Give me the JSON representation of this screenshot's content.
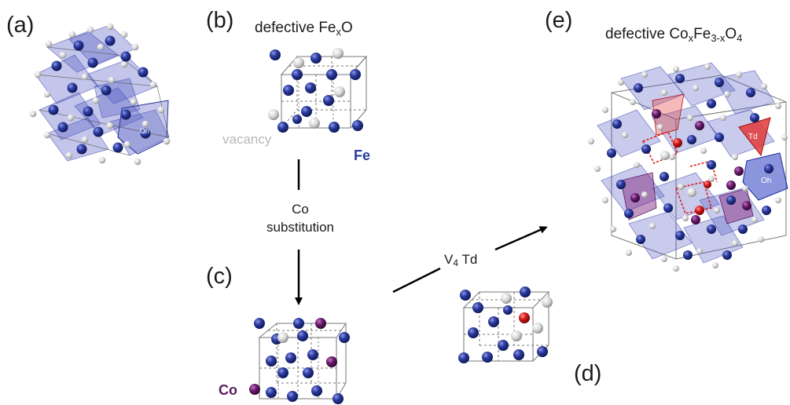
{
  "panels": {
    "a": {
      "label": "(a)",
      "site_label": "Oh"
    },
    "b": {
      "label": "(b)",
      "title_main": "defective Fe",
      "title_sub": "x",
      "title_tail": "O",
      "vacancy_label": "vacancy",
      "fe_label": "Fe"
    },
    "c": {
      "label": "(c)",
      "co_label": "Co"
    },
    "d": {
      "label": "(d)"
    },
    "e": {
      "label": "(e)",
      "title_main": "defective Co",
      "title_sub1": "x",
      "title_mid": "Fe",
      "title_sub2": "3-x",
      "title_tail": "O",
      "title_sub3": "4",
      "td_label": "Td",
      "oh_label": "Oh"
    }
  },
  "arrows": {
    "down": {
      "line1": "Co",
      "line2": "substitution"
    },
    "diag": {
      "main": "V",
      "sub": "4",
      "tail": " Td"
    }
  },
  "colors": {
    "fe": "#2b3b9e",
    "vacancy": "#d4d4d4",
    "co": "#6b1d6e",
    "red_site": "#d81818",
    "polyhedron": "#5b62c4",
    "td_poly": "#e03a3a"
  }
}
